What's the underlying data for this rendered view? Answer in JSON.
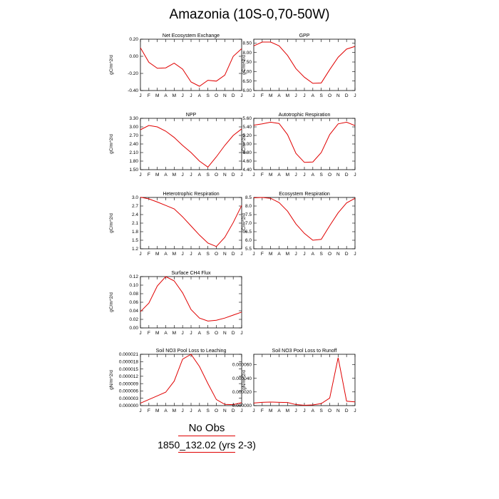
{
  "title": "Amazonia (10S-0,70-50W)",
  "legend": {
    "heading": "No Obs",
    "label": "1850_132.02 (yrs 2-3)",
    "color": "#e00000"
  },
  "chart_data": [
    {
      "type": "line",
      "title": "Net Ecosystem Exchange",
      "ylabel": "gC/m^2/d",
      "categories": [
        "J",
        "F",
        "M",
        "A",
        "M",
        "J",
        "J",
        "A",
        "S",
        "O",
        "N",
        "D",
        "J"
      ],
      "yticks": [
        "0.20",
        "0.00",
        "-0.20",
        "-0.40"
      ],
      "ylim": [
        -0.4,
        0.2
      ],
      "series": [
        {
          "values": [
            0.1,
            -0.07,
            -0.14,
            -0.135,
            -0.08,
            -0.15,
            -0.3,
            -0.35,
            -0.28,
            -0.29,
            -0.22,
            0.0,
            0.09
          ]
        }
      ]
    },
    {
      "type": "line",
      "title": "GPP",
      "ylabel": "gC/m^2/d",
      "categories": [
        "J",
        "F",
        "M",
        "A",
        "M",
        "J",
        "J",
        "A",
        "S",
        "O",
        "N",
        "D",
        "J"
      ],
      "yticks": [
        "8.50",
        "8.00",
        "7.50",
        "7.00",
        "6.50",
        "6.00"
      ],
      "ylim": [
        6.0,
        8.7
      ],
      "series": [
        {
          "values": [
            8.35,
            8.55,
            8.55,
            8.35,
            7.85,
            7.15,
            6.7,
            6.38,
            6.4,
            7.1,
            7.75,
            8.18,
            8.32
          ]
        }
      ]
    },
    {
      "type": "line",
      "title": "NPP",
      "ylabel": "gC/m^2/d",
      "categories": [
        "J",
        "F",
        "M",
        "A",
        "M",
        "J",
        "J",
        "A",
        "S",
        "O",
        "N",
        "D",
        "J"
      ],
      "yticks": [
        "3.30",
        "3.00",
        "2.70",
        "2.40",
        "2.10",
        "1.80",
        "1.50"
      ],
      "ylim": [
        1.5,
        3.3
      ],
      "series": [
        {
          "values": [
            2.9,
            3.05,
            3.0,
            2.85,
            2.63,
            2.35,
            2.1,
            1.8,
            1.59,
            1.95,
            2.35,
            2.7,
            2.93
          ]
        }
      ]
    },
    {
      "type": "line",
      "title": "Autotrophic Respiration",
      "ylabel": "gC/m^2/d",
      "categories": [
        "J",
        "F",
        "M",
        "A",
        "M",
        "J",
        "J",
        "A",
        "S",
        "O",
        "N",
        "D",
        "J"
      ],
      "yticks": [
        "5.60",
        "5.40",
        "5.20",
        "5.00",
        "4.80",
        "4.60",
        "4.40"
      ],
      "ylim": [
        4.4,
        5.6
      ],
      "series": [
        {
          "values": [
            5.44,
            5.47,
            5.51,
            5.48,
            5.22,
            4.78,
            4.57,
            4.58,
            4.8,
            5.22,
            5.47,
            5.51,
            5.43
          ]
        }
      ]
    },
    {
      "type": "line",
      "title": "Heterotrophic Respiration",
      "ylabel": "gC/m^2/d",
      "categories": [
        "J",
        "F",
        "M",
        "A",
        "M",
        "J",
        "J",
        "A",
        "S",
        "O",
        "N",
        "D",
        "J"
      ],
      "yticks": [
        "3.0",
        "2.7",
        "2.4",
        "2.1",
        "1.8",
        "1.5",
        "1.2"
      ],
      "ylim": [
        1.2,
        3.0
      ],
      "series": [
        {
          "values": [
            3.01,
            2.95,
            2.84,
            2.72,
            2.6,
            2.32,
            2.0,
            1.68,
            1.4,
            1.28,
            1.6,
            2.12,
            2.72
          ]
        }
      ]
    },
    {
      "type": "line",
      "title": "Ecosystem Respiration",
      "ylabel": "gC/m^2/d",
      "categories": [
        "J",
        "F",
        "M",
        "A",
        "M",
        "J",
        "J",
        "A",
        "S",
        "O",
        "N",
        "D",
        "J"
      ],
      "yticks": [
        "8.5",
        "8.0",
        "7.5",
        "7.0",
        "6.5",
        "6.0",
        "5.5"
      ],
      "ylim": [
        5.5,
        8.5
      ],
      "series": [
        {
          "values": [
            8.48,
            8.5,
            8.45,
            8.2,
            7.7,
            6.95,
            6.4,
            6.0,
            6.05,
            6.85,
            7.6,
            8.18,
            8.45
          ]
        }
      ]
    },
    {
      "type": "line",
      "title": "Surface CH4 Flux",
      "ylabel": "gC/m^2/d",
      "categories": [
        "J",
        "F",
        "M",
        "A",
        "M",
        "J",
        "J",
        "A",
        "S",
        "O",
        "N",
        "D",
        "J"
      ],
      "yticks": [
        "0.12",
        "0.10",
        "0.08",
        "0.06",
        "0.04",
        "0.02",
        "0.00"
      ],
      "ylim": [
        0.0,
        0.12
      ],
      "series": [
        {
          "values": [
            0.038,
            0.058,
            0.098,
            0.12,
            0.11,
            0.082,
            0.043,
            0.023,
            0.016,
            0.018,
            0.023,
            0.03,
            0.037
          ]
        }
      ]
    },
    {
      "type": "line",
      "title": "Soil NO3 Pool Loss to Leaching",
      "ylabel": "gN/m^2/d",
      "categories": [
        "J",
        "F",
        "M",
        "A",
        "M",
        "J",
        "J",
        "A",
        "S",
        "O",
        "N",
        "D",
        "J"
      ],
      "yticks": [
        "0.000021",
        "0.000018",
        "0.000015",
        "0.000012",
        "0.000009",
        "0.000006",
        "0.000003",
        "0.000000"
      ],
      "ylim": [
        0.0,
        2.1e-05
      ],
      "series": [
        {
          "values": [
            1e-06,
            2.5e-06,
            4e-06,
            5.5e-06,
            1e-05,
            1.9e-05,
            2.1e-05,
            1.6e-05,
            9e-06,
            2.5e-06,
            5e-07,
            4e-07,
            1.2e-06
          ]
        }
      ]
    },
    {
      "type": "line",
      "title": "Soil NO3 Pool Loss to Runoff",
      "ylabel": "gN/m^2/d",
      "categories": [
        "J",
        "F",
        "M",
        "A",
        "M",
        "J",
        "J",
        "A",
        "S",
        "O",
        "N",
        "D",
        "J"
      ],
      "yticks": [
        "0.000060",
        "0.000040",
        "0.000020",
        "0.000000"
      ],
      "ylim": [
        0.0,
        7.5e-05
      ],
      "series": [
        {
          "values": [
            3.8e-06,
            4.8e-06,
            5.2e-06,
            4.8e-06,
            4.5e-06,
            1.5e-06,
            5e-07,
            1e-06,
            3e-06,
            1.1e-05,
            7e-05,
            6.5e-06,
            5.5e-06
          ]
        }
      ]
    }
  ]
}
